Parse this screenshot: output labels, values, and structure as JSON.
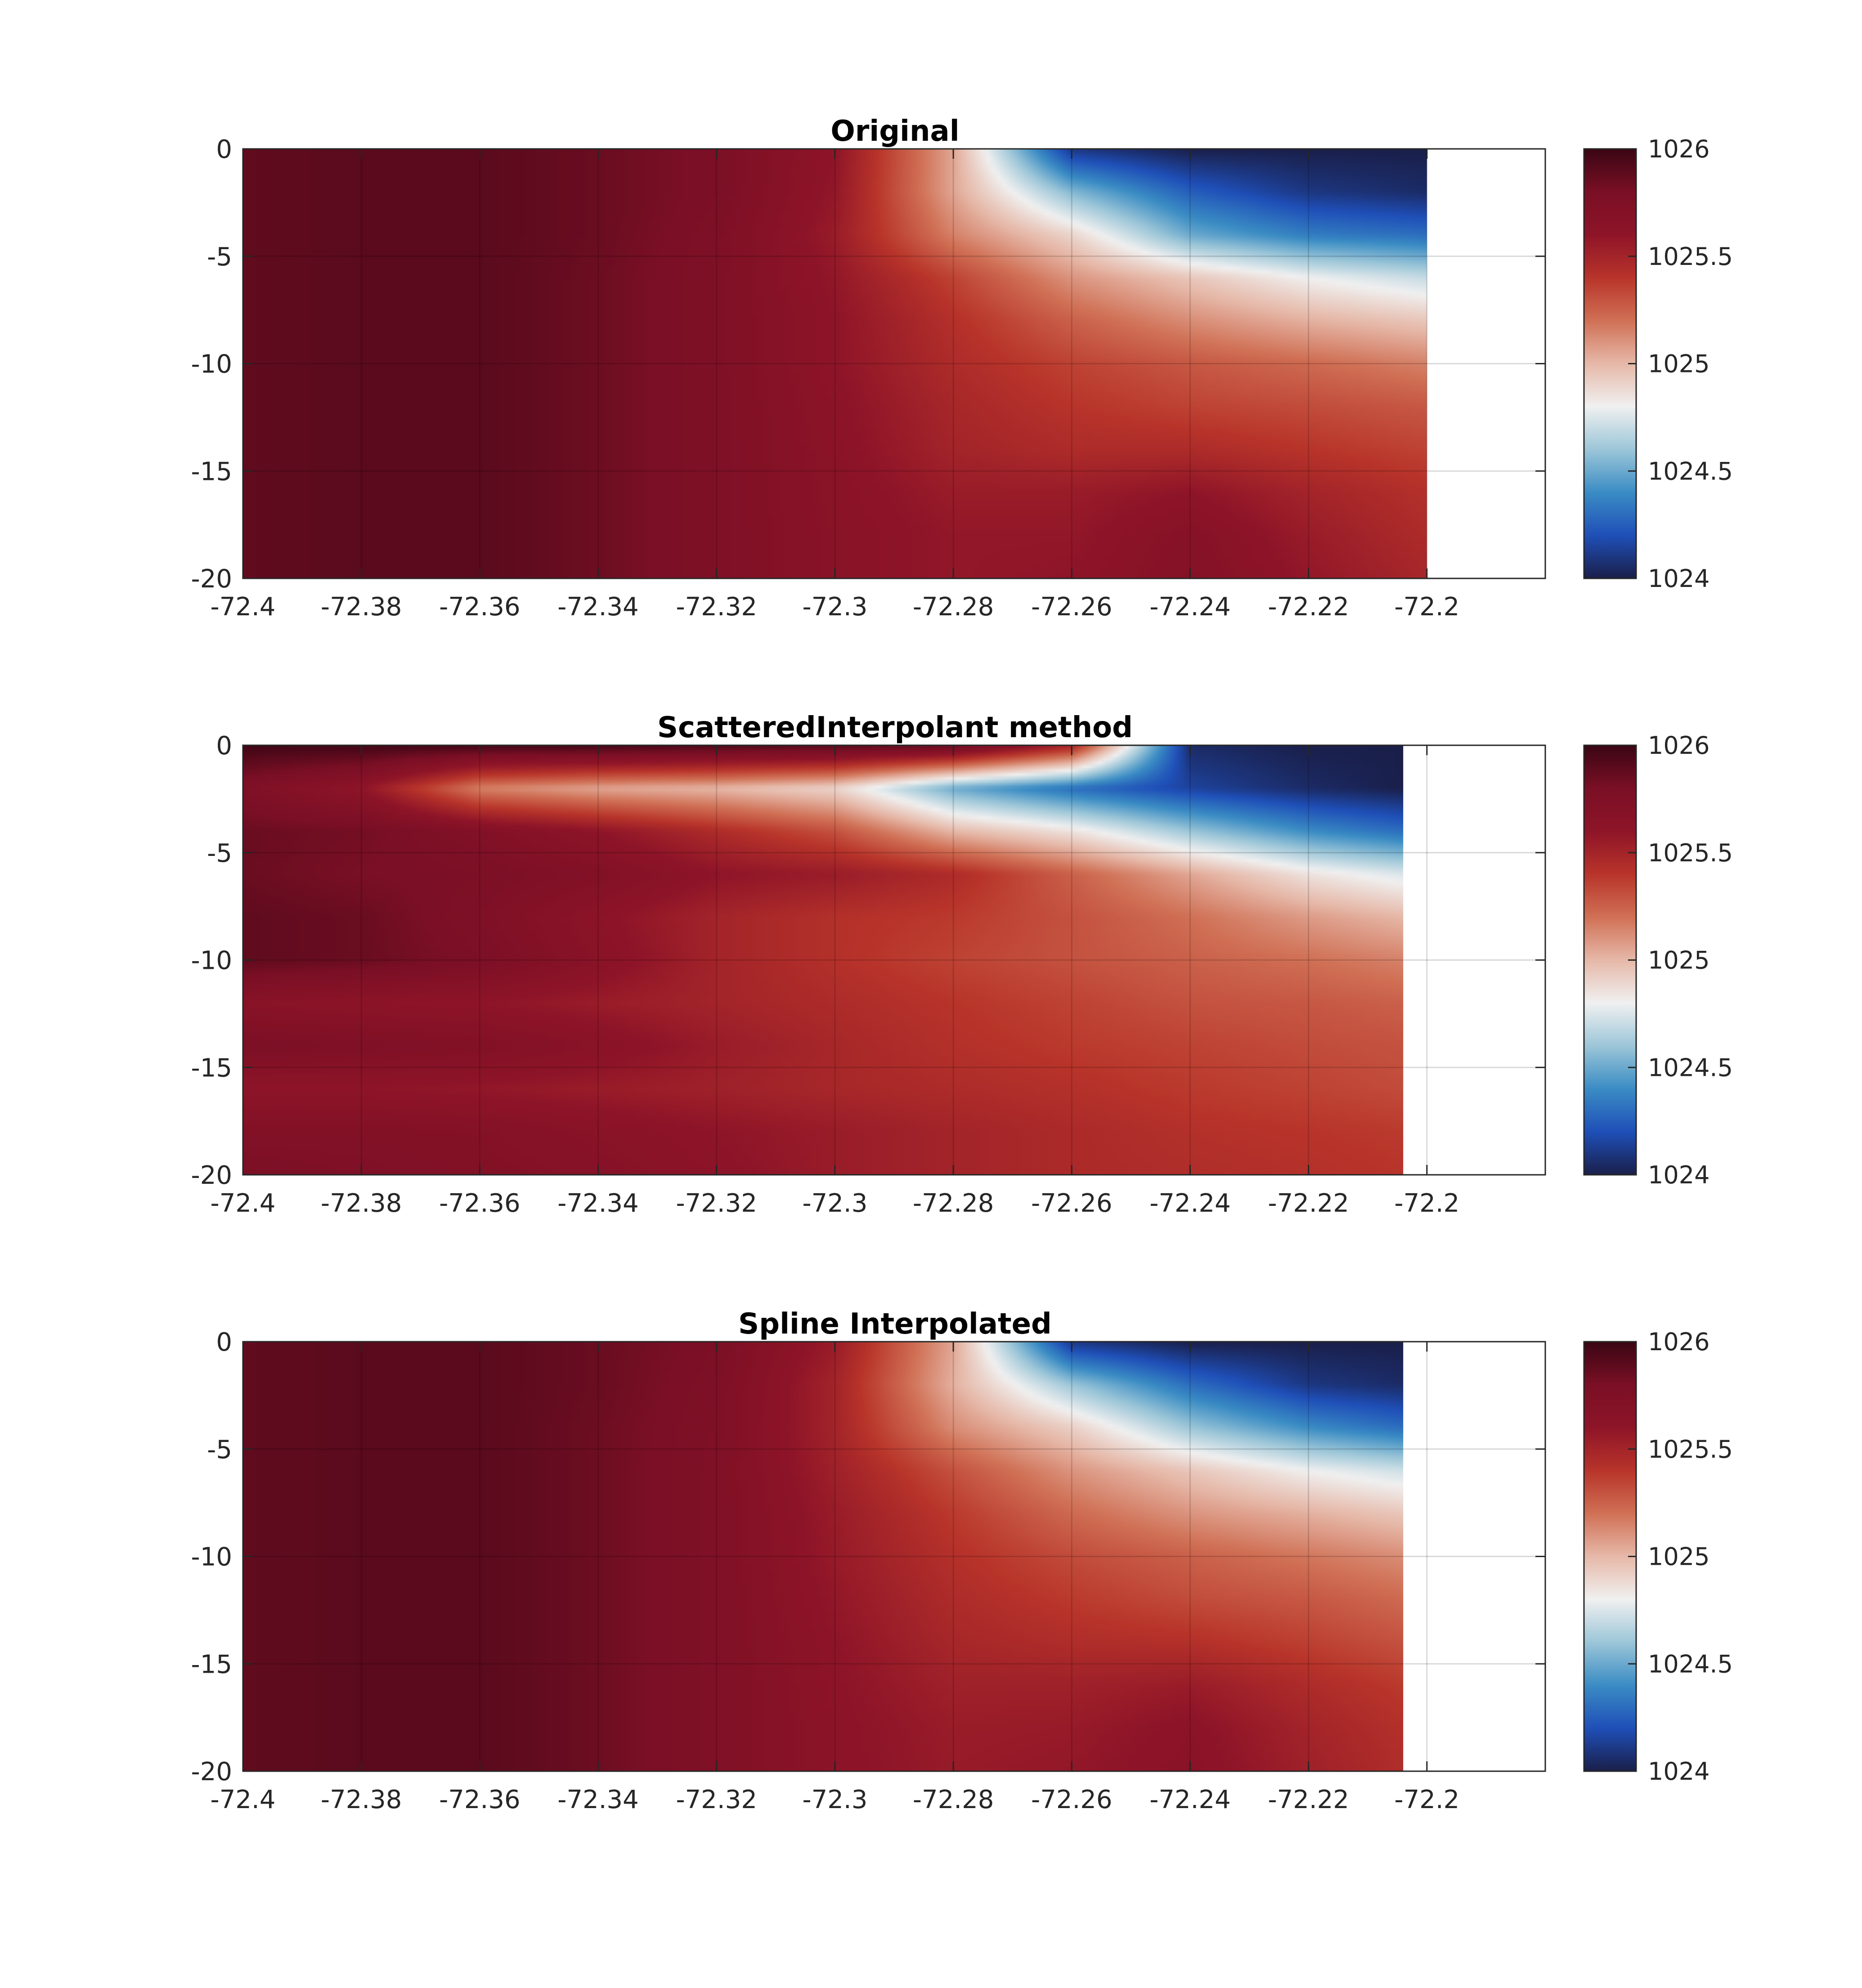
{
  "chart_data": [
    {
      "type": "heatmap",
      "title": "Original",
      "xlabel": "",
      "ylabel": "",
      "xlim": [
        -72.4,
        -72.18
      ],
      "ylim": [
        -20,
        0
      ],
      "x_ticks": [
        "-72.4",
        "-72.38",
        "-72.36",
        "-72.34",
        "-72.32",
        "-72.3",
        "-72.28",
        "-72.26",
        "-72.24",
        "-72.22",
        "-72.2"
      ],
      "y_ticks": [
        "0",
        "-5",
        "-10",
        "-15",
        "-20"
      ],
      "data_x_extent": [
        -72.4,
        -72.2
      ],
      "grid": true,
      "colorbar": {
        "range": [
          1024,
          1026
        ],
        "ticks": [
          "1026",
          "1025.5",
          "1025",
          "1024.5",
          "1024"
        ],
        "placement": "right"
      },
      "x": [
        -72.4,
        -72.38,
        -72.36,
        -72.34,
        -72.32,
        -72.3,
        -72.28,
        -72.26,
        -72.24,
        -72.22,
        -72.2
      ],
      "y": [
        0,
        -2,
        -4,
        -6,
        -8,
        -10,
        -12,
        -14,
        -16,
        -18,
        -20
      ],
      "z": [
        [
          1025.88,
          1025.9,
          1025.9,
          1025.85,
          1025.78,
          1025.6,
          1025.05,
          1024.1,
          1024.0,
          1024.0,
          1024.0
        ],
        [
          1025.88,
          1025.9,
          1025.9,
          1025.85,
          1025.78,
          1025.58,
          1025.05,
          1024.55,
          1024.25,
          1024.1,
          1024.05
        ],
        [
          1025.88,
          1025.9,
          1025.9,
          1025.85,
          1025.76,
          1025.55,
          1025.15,
          1024.9,
          1024.5,
          1024.35,
          1024.3
        ],
        [
          1025.88,
          1025.9,
          1025.9,
          1025.84,
          1025.75,
          1025.58,
          1025.35,
          1025.1,
          1024.95,
          1024.8,
          1024.7
        ],
        [
          1025.88,
          1025.9,
          1025.9,
          1025.84,
          1025.75,
          1025.6,
          1025.42,
          1025.25,
          1025.12,
          1025.02,
          1024.95
        ],
        [
          1025.88,
          1025.9,
          1025.9,
          1025.84,
          1025.75,
          1025.6,
          1025.45,
          1025.35,
          1025.28,
          1025.22,
          1025.15
        ],
        [
          1025.88,
          1025.9,
          1025.9,
          1025.84,
          1025.75,
          1025.62,
          1025.48,
          1025.4,
          1025.35,
          1025.32,
          1025.28
        ],
        [
          1025.88,
          1025.9,
          1025.9,
          1025.84,
          1025.75,
          1025.63,
          1025.5,
          1025.45,
          1025.45,
          1025.4,
          1025.35
        ],
        [
          1025.88,
          1025.9,
          1025.9,
          1025.84,
          1025.75,
          1025.64,
          1025.55,
          1025.55,
          1025.6,
          1025.5,
          1025.42
        ],
        [
          1025.88,
          1025.9,
          1025.9,
          1025.84,
          1025.75,
          1025.65,
          1025.58,
          1025.58,
          1025.68,
          1025.55,
          1025.45
        ],
        [
          1025.88,
          1025.9,
          1025.9,
          1025.84,
          1025.75,
          1025.65,
          1025.58,
          1025.6,
          1025.7,
          1025.58,
          1025.48
        ]
      ]
    },
    {
      "type": "heatmap",
      "title": "ScatteredInterpolant method",
      "xlabel": "",
      "ylabel": "",
      "xlim": [
        -72.4,
        -72.18
      ],
      "ylim": [
        -20,
        0
      ],
      "x_ticks": [
        "-72.4",
        "-72.38",
        "-72.36",
        "-72.34",
        "-72.32",
        "-72.3",
        "-72.28",
        "-72.26",
        "-72.24",
        "-72.22",
        "-72.2"
      ],
      "y_ticks": [
        "0",
        "-5",
        "-10",
        "-15",
        "-20"
      ],
      "data_x_extent": [
        -72.4,
        -72.204
      ],
      "grid": true,
      "colorbar": {
        "range": [
          1024,
          1026
        ],
        "ticks": [
          "1026",
          "1025.5",
          "1025",
          "1024.5",
          "1024"
        ],
        "placement": "right"
      },
      "x": [
        -72.4,
        -72.38,
        -72.36,
        -72.34,
        -72.32,
        -72.3,
        -72.28,
        -72.26,
        -72.24,
        -72.22,
        -72.204
      ],
      "y": [
        0,
        -2,
        -4,
        -6,
        -8,
        -10,
        -12,
        -14,
        -16,
        -18,
        -20
      ],
      "z": [
        [
          1025.98,
          1025.98,
          1025.98,
          1025.98,
          1025.95,
          1025.92,
          1025.88,
          1025.5,
          1024.05,
          1024.0,
          1024.0
        ],
        [
          1025.75,
          1025.6,
          1025.15,
          1025.05,
          1025.0,
          1024.9,
          1024.5,
          1024.3,
          1024.15,
          1024.05,
          1024.0
        ],
        [
          1025.85,
          1025.82,
          1025.72,
          1025.6,
          1025.45,
          1025.3,
          1025.0,
          1024.85,
          1024.6,
          1024.4,
          1024.3
        ],
        [
          1025.85,
          1025.8,
          1025.78,
          1025.72,
          1025.6,
          1025.55,
          1025.45,
          1025.25,
          1025.05,
          1024.85,
          1024.75
        ],
        [
          1025.88,
          1025.85,
          1025.75,
          1025.62,
          1025.5,
          1025.42,
          1025.38,
          1025.3,
          1025.2,
          1025.08,
          1025.0
        ],
        [
          1025.88,
          1025.85,
          1025.78,
          1025.65,
          1025.5,
          1025.42,
          1025.35,
          1025.3,
          1025.25,
          1025.2,
          1025.15
        ],
        [
          1025.65,
          1025.62,
          1025.6,
          1025.55,
          1025.5,
          1025.45,
          1025.4,
          1025.35,
          1025.3,
          1025.28,
          1025.25
        ],
        [
          1025.78,
          1025.75,
          1025.72,
          1025.65,
          1025.55,
          1025.48,
          1025.42,
          1025.38,
          1025.35,
          1025.32,
          1025.3
        ],
        [
          1025.6,
          1025.6,
          1025.58,
          1025.55,
          1025.52,
          1025.48,
          1025.45,
          1025.42,
          1025.38,
          1025.35,
          1025.32
        ],
        [
          1025.72,
          1025.72,
          1025.7,
          1025.65,
          1025.6,
          1025.55,
          1025.5,
          1025.46,
          1025.42,
          1025.4,
          1025.38
        ],
        [
          1025.78,
          1025.75,
          1025.72,
          1025.68,
          1025.62,
          1025.55,
          1025.5,
          1025.46,
          1025.44,
          1025.42,
          1025.4
        ]
      ]
    },
    {
      "type": "heatmap",
      "title": "Spline Interpolated",
      "xlabel": "",
      "ylabel": "",
      "xlim": [
        -72.4,
        -72.18
      ],
      "ylim": [
        -20,
        0
      ],
      "x_ticks": [
        "-72.4",
        "-72.38",
        "-72.36",
        "-72.34",
        "-72.32",
        "-72.3",
        "-72.28",
        "-72.26",
        "-72.24",
        "-72.22",
        "-72.2"
      ],
      "y_ticks": [
        "0",
        "-5",
        "-10",
        "-15",
        "-20"
      ],
      "data_x_extent": [
        -72.4,
        -72.204
      ],
      "grid": true,
      "colorbar": {
        "range": [
          1024,
          1026
        ],
        "ticks": [
          "1026",
          "1025.5",
          "1025",
          "1024.5",
          "1024"
        ],
        "placement": "right"
      },
      "x": [
        -72.4,
        -72.38,
        -72.36,
        -72.34,
        -72.32,
        -72.3,
        -72.28,
        -72.26,
        -72.24,
        -72.22,
        -72.204
      ],
      "y": [
        0,
        -2,
        -4,
        -6,
        -8,
        -10,
        -12,
        -14,
        -16,
        -18,
        -20
      ],
      "z": [
        [
          1025.88,
          1025.9,
          1025.9,
          1025.85,
          1025.78,
          1025.55,
          1025.05,
          1024.1,
          1024.0,
          1024.0,
          1024.0
        ],
        [
          1025.88,
          1025.9,
          1025.9,
          1025.85,
          1025.76,
          1025.5,
          1025.02,
          1024.6,
          1024.3,
          1024.1,
          1024.05
        ],
        [
          1025.88,
          1025.9,
          1025.9,
          1025.84,
          1025.75,
          1025.5,
          1025.12,
          1024.92,
          1024.6,
          1024.4,
          1024.3
        ],
        [
          1025.88,
          1025.9,
          1025.9,
          1025.84,
          1025.74,
          1025.52,
          1025.3,
          1025.1,
          1024.95,
          1024.8,
          1024.72
        ],
        [
          1025.88,
          1025.9,
          1025.9,
          1025.84,
          1025.74,
          1025.55,
          1025.38,
          1025.22,
          1025.1,
          1025.02,
          1024.95
        ],
        [
          1025.88,
          1025.9,
          1025.9,
          1025.84,
          1025.74,
          1025.56,
          1025.42,
          1025.32,
          1025.25,
          1025.18,
          1025.12
        ],
        [
          1025.88,
          1025.9,
          1025.9,
          1025.84,
          1025.74,
          1025.58,
          1025.45,
          1025.38,
          1025.32,
          1025.28,
          1025.22
        ],
        [
          1025.88,
          1025.9,
          1025.9,
          1025.84,
          1025.74,
          1025.6,
          1025.48,
          1025.44,
          1025.42,
          1025.36,
          1025.3
        ],
        [
          1025.88,
          1025.9,
          1025.9,
          1025.84,
          1025.74,
          1025.61,
          1025.52,
          1025.52,
          1025.55,
          1025.45,
          1025.38
        ],
        [
          1025.88,
          1025.9,
          1025.9,
          1025.84,
          1025.74,
          1025.62,
          1025.55,
          1025.56,
          1025.62,
          1025.5,
          1025.42
        ],
        [
          1025.88,
          1025.9,
          1025.9,
          1025.84,
          1025.74,
          1025.62,
          1025.56,
          1025.58,
          1025.64,
          1025.52,
          1025.44
        ]
      ]
    }
  ],
  "colormap": [
    "#1a1f4a",
    "#1f4fb8",
    "#3a8cc4",
    "#9cc6d8",
    "#f0f0f0",
    "#e6b8a8",
    "#d07055",
    "#b8342a",
    "#8e1428",
    "#7a0f25",
    "#3a0614"
  ]
}
